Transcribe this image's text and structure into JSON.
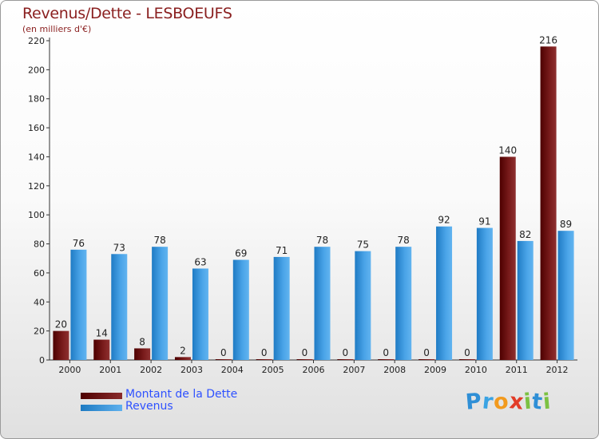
{
  "chart_data": {
    "type": "bar",
    "title": "Revenus/Dette - LESBOEUFS",
    "subtitle": "(en milliers d'€)",
    "xlabel": "",
    "ylabel": "",
    "ylim": [
      0,
      220
    ],
    "yticks": [
      0,
      20,
      40,
      60,
      80,
      100,
      120,
      140,
      160,
      180,
      200,
      220
    ],
    "grid": false,
    "categories": [
      "2000",
      "2001",
      "2002",
      "2003",
      "2004",
      "2005",
      "2006",
      "2007",
      "2008",
      "2009",
      "2010",
      "2011",
      "2012"
    ],
    "series": [
      {
        "name": "Montant de la Dette",
        "color": "#6b0f0f",
        "values": [
          20,
          14,
          8,
          2,
          0,
          0,
          0,
          0,
          0,
          0,
          0,
          140,
          216
        ]
      },
      {
        "name": "Revenus",
        "color": "#3a97e0",
        "values": [
          76,
          73,
          78,
          63,
          69,
          71,
          78,
          75,
          78,
          92,
          91,
          82,
          89
        ]
      }
    ]
  },
  "legend": {
    "debt_label": "Montant de la Dette",
    "revenue_label": "Revenus",
    "position": "bottom-left"
  },
  "logo": {
    "letters": [
      {
        "ch": "P",
        "color": "#2f8fd6"
      },
      {
        "ch": "r",
        "color": "#3aa3e3"
      },
      {
        "ch": "o",
        "color": "#f29a1e"
      },
      {
        "ch": "x",
        "color": "#e23c28"
      },
      {
        "ch": "i",
        "color": "#7cc142"
      },
      {
        "ch": "t",
        "color": "#2f8fd6"
      },
      {
        "ch": "i",
        "color": "#7cc142"
      }
    ]
  }
}
